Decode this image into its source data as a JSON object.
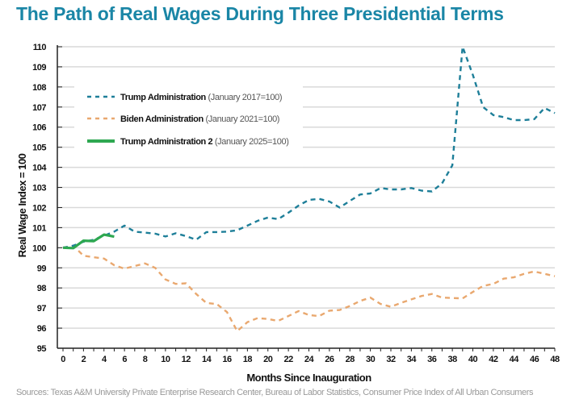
{
  "title": "The Path of Real Wages During Three Presidential Terms",
  "source": "Sources: Texas A&M University Private Enterprise Research Center, Bureau of Labor Statistics, Consumer Price Index of All Urban Consumers",
  "chart_data": {
    "type": "line",
    "title": "The Path of Real Wages During Three Presidential Terms",
    "xlabel": "Months Since Inauguration",
    "ylabel": "Real Wage Index = 100",
    "xlim": [
      0,
      48
    ],
    "ylim": [
      95,
      110
    ],
    "xticks": [
      0,
      2,
      4,
      6,
      8,
      10,
      12,
      14,
      16,
      18,
      20,
      22,
      24,
      26,
      28,
      30,
      32,
      34,
      36,
      38,
      40,
      42,
      44,
      46,
      48
    ],
    "yticks": [
      95,
      96,
      97,
      98,
      99,
      100,
      101,
      102,
      103,
      104,
      105,
      106,
      107,
      108,
      109,
      110
    ],
    "grid": true,
    "legend_position": "top-left",
    "series": [
      {
        "name": "Trump Administration",
        "note": "(January 2017=100)",
        "color": "#1e7f99",
        "style": "dashed",
        "x": [
          0,
          1,
          2,
          3,
          4,
          5,
          6,
          7,
          8,
          9,
          10,
          11,
          12,
          13,
          14,
          15,
          16,
          17,
          18,
          19,
          20,
          21,
          22,
          23,
          24,
          25,
          26,
          27,
          28,
          29,
          30,
          31,
          32,
          33,
          34,
          35,
          36,
          37,
          38,
          39,
          40,
          41,
          42,
          43,
          44,
          45,
          46,
          47,
          48
        ],
        "values": [
          100,
          100.1,
          100.3,
          100.4,
          100.6,
          100.8,
          101.1,
          100.8,
          100.75,
          100.7,
          100.56,
          100.72,
          100.58,
          100.4,
          100.78,
          100.78,
          100.8,
          100.87,
          101.1,
          101.34,
          101.5,
          101.42,
          101.74,
          102.1,
          102.38,
          102.43,
          102.3,
          102.0,
          102.33,
          102.65,
          102.7,
          102.97,
          102.9,
          102.9,
          102.97,
          102.84,
          102.8,
          103.2,
          104.1,
          110.0,
          108.6,
          107.0,
          106.6,
          106.5,
          106.35,
          106.35,
          106.4,
          106.95,
          106.7
        ]
      },
      {
        "name": "Biden Administration",
        "note": "(January 2021=100)",
        "color": "#e9a86f",
        "style": "dashed",
        "x": [
          0,
          1,
          2,
          3,
          4,
          5,
          6,
          7,
          8,
          9,
          10,
          11,
          12,
          13,
          14,
          15,
          16,
          17,
          18,
          19,
          20,
          21,
          22,
          23,
          24,
          25,
          26,
          27,
          28,
          29,
          30,
          31,
          32,
          33,
          34,
          35,
          36,
          37,
          38,
          39,
          40,
          41,
          42,
          43,
          44,
          45,
          46,
          47,
          48
        ],
        "values": [
          100,
          100.1,
          99.6,
          99.53,
          99.46,
          99.13,
          98.96,
          99.09,
          99.22,
          99.0,
          98.42,
          98.2,
          98.23,
          97.7,
          97.25,
          97.2,
          96.8,
          95.85,
          96.3,
          96.5,
          96.45,
          96.36,
          96.6,
          96.85,
          96.65,
          96.6,
          96.87,
          96.9,
          97.1,
          97.35,
          97.52,
          97.2,
          97.06,
          97.26,
          97.43,
          97.6,
          97.7,
          97.52,
          97.5,
          97.48,
          97.8,
          98.1,
          98.2,
          98.46,
          98.53,
          98.7,
          98.82,
          98.7,
          98.58
        ]
      },
      {
        "name": "Trump Administration 2",
        "note": "(January 2025=100)",
        "color": "#2ea851",
        "style": "solid",
        "x": [
          0,
          1,
          2,
          3,
          4,
          5
        ],
        "values": [
          100,
          99.98,
          100.35,
          100.33,
          100.65,
          100.55
        ]
      }
    ]
  }
}
